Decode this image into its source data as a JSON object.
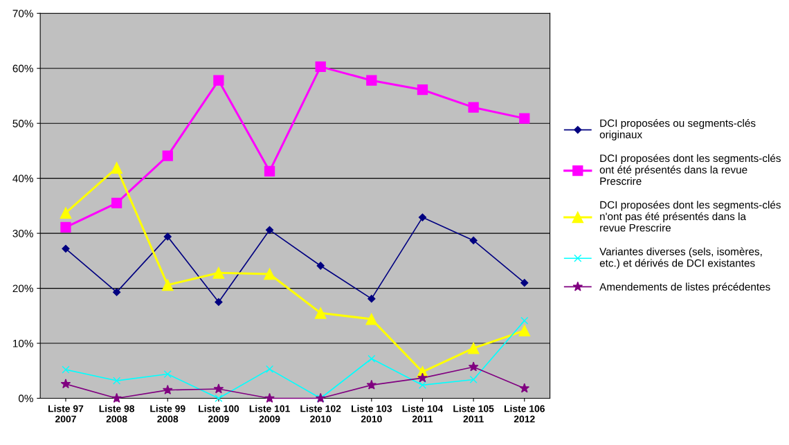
{
  "chart_data": {
    "type": "line",
    "categories": [
      "Liste 97\n2007",
      "Liste 98\n2008",
      "Liste 99\n2008",
      "Liste 100\n2009",
      "Liste 101\n2009",
      "Liste 102\n2010",
      "Liste 103\n2010",
      "Liste 104\n2011",
      "Liste 105\n2011",
      "Liste 106\n2012"
    ],
    "series": [
      {
        "name": "DCI proposées ou segments-clés originaux",
        "color": "#000080",
        "marker": "diamond",
        "values": [
          27.2,
          19.3,
          29.4,
          17.5,
          30.6,
          24.1,
          18.1,
          32.9,
          28.7,
          21.0
        ]
      },
      {
        "name": "DCI proposées dont les segments-clés ont été présentés dans la revue Prescrire",
        "color": "#ff00ff",
        "marker": "square",
        "values": [
          31.1,
          35.5,
          44.1,
          57.8,
          41.3,
          60.3,
          57.8,
          56.1,
          52.9,
          50.9
        ]
      },
      {
        "name": "DCI proposées dont les segments-clés n'ont pas été présentés dans la revue Prescrire",
        "color": "#ffff00",
        "marker": "triangle",
        "values": [
          33.7,
          41.9,
          20.6,
          22.8,
          22.6,
          15.5,
          14.4,
          4.8,
          9.1,
          12.3
        ]
      },
      {
        "name": "Variantes diverses (sels, isomères, etc.) et dérivés de DCI existantes",
        "color": "#00ffff",
        "marker": "cross",
        "values": [
          5.2,
          3.2,
          4.4,
          0,
          5.3,
          0,
          7.2,
          2.4,
          3.4,
          14.1
        ]
      },
      {
        "name": "Amendements de listes précédentes",
        "color": "#800080",
        "marker": "star",
        "values": [
          2.6,
          0,
          1.5,
          1.7,
          0,
          0,
          2.4,
          3.7,
          5.7,
          1.8
        ]
      }
    ],
    "ylim": [
      0,
      70
    ],
    "yticks": [
      {
        "value": 0,
        "label": "0%"
      },
      {
        "value": 10,
        "label": "10%"
      },
      {
        "value": 20,
        "label": "20%"
      },
      {
        "value": 30,
        "label": "30%"
      },
      {
        "value": 40,
        "label": "40%"
      },
      {
        "value": 50,
        "label": "50%"
      },
      {
        "value": 60,
        "label": "60%"
      },
      {
        "value": 70,
        "label": "70%"
      }
    ],
    "grid": "y",
    "legend": "right",
    "line_style": "solid"
  }
}
